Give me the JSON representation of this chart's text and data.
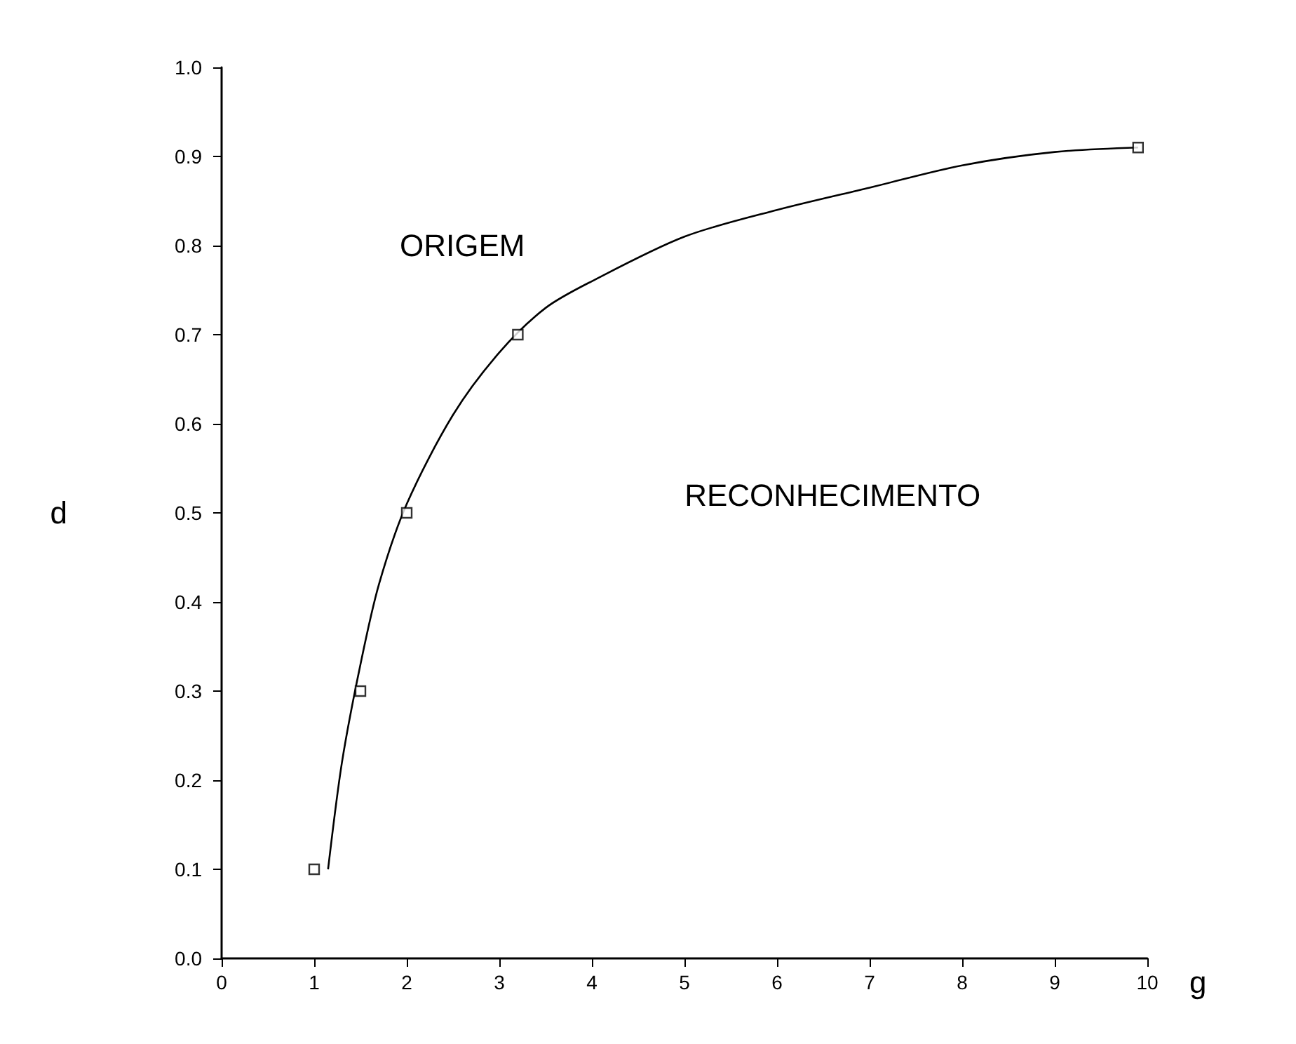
{
  "chart_data": {
    "type": "scatter",
    "xlabel": "g",
    "ylabel": "d",
    "xlim": [
      0,
      10
    ],
    "xticks": [
      0,
      1,
      2,
      3,
      4,
      5,
      6,
      7,
      8,
      9,
      10
    ],
    "ylim": [
      0,
      1
    ],
    "yticks": [
      {
        "value": 0,
        "label": "0.0"
      },
      {
        "value": 0.1,
        "label": "0.1"
      },
      {
        "value": 0.2,
        "label": "0.2"
      },
      {
        "value": 0.3,
        "label": "0.3"
      },
      {
        "value": 0.4,
        "label": "0.4"
      },
      {
        "value": 0.5,
        "label": "0.5"
      },
      {
        "value": 0.6,
        "label": "0.6"
      },
      {
        "value": 0.7,
        "label": "0.7"
      },
      {
        "value": 0.8,
        "label": "0.8"
      },
      {
        "value": 0.9,
        "label": "0.9"
      },
      {
        "value": 1,
        "label": "1.0"
      }
    ],
    "grid": false,
    "series": [
      {
        "color": "#000000",
        "marker": "square",
        "x": [
          1.0,
          1.5,
          2.0,
          3.2,
          9.9
        ],
        "values": [
          0.1,
          0.3,
          0.5,
          0.7,
          0.91
        ]
      },
      {
        "type": "line",
        "color": "#000000",
        "marker": "none",
        "line_style": "solid",
        "x": [
          1.15,
          1.3,
          1.5,
          1.7,
          2.0,
          2.5,
          3.0,
          3.5,
          4.0,
          5.0,
          6.0,
          7.0,
          8.0,
          9.0,
          9.9
        ],
        "values": [
          0.1,
          0.22,
          0.33,
          0.42,
          0.51,
          0.61,
          0.68,
          0.73,
          0.76,
          0.81,
          0.84,
          0.865,
          0.89,
          0.905,
          0.91
        ]
      }
    ],
    "annotations": [
      "ORIGEM",
      "RECONHECIMENTO"
    ]
  }
}
